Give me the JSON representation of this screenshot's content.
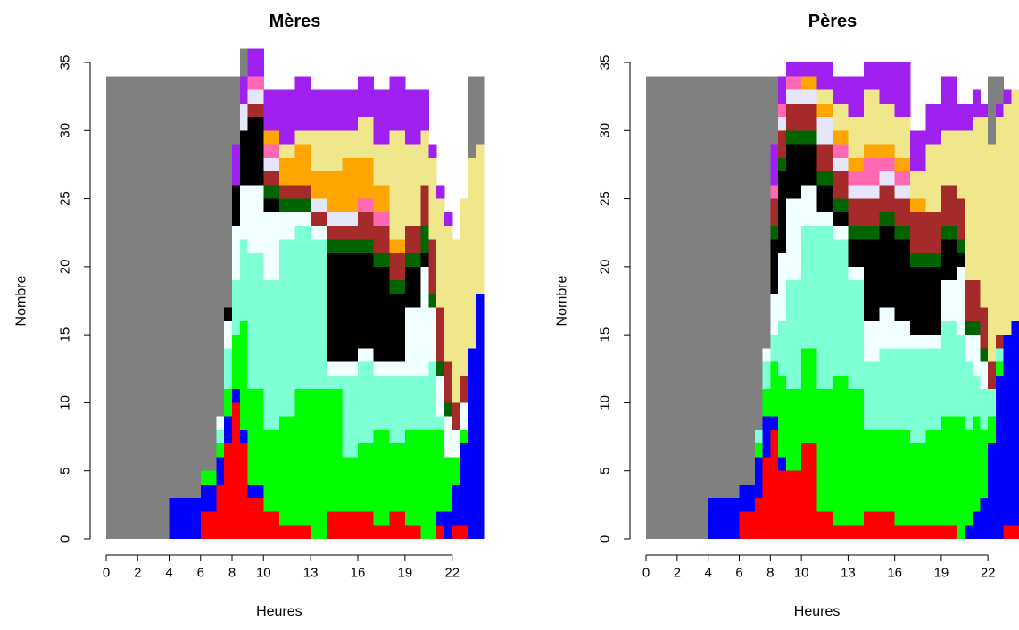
{
  "chart_data": [
    {
      "type": "area",
      "stacked": true,
      "step": true,
      "title": "Mères",
      "xlabel": "Heures",
      "ylabel": "Nombre",
      "xlim": [
        0,
        24
      ],
      "ylim": [
        0,
        35
      ],
      "x_ticks": [
        0,
        2,
        4,
        6,
        8,
        10,
        13,
        16,
        19,
        22
      ],
      "y_ticks": [
        0,
        5,
        10,
        15,
        20,
        25,
        30,
        35
      ],
      "x": [
        0,
        1,
        2,
        3,
        4,
        5,
        6,
        7,
        7.5,
        8,
        8.5,
        9,
        10,
        11,
        12,
        13,
        14,
        15,
        16,
        17,
        18,
        19,
        20,
        20.5,
        21,
        21.5,
        22,
        22.5,
        23,
        23.5
      ],
      "series": [
        {
          "values": [
            0,
            0,
            0,
            0,
            0,
            0,
            2,
            4,
            7,
            10,
            7,
            3,
            2,
            1,
            1,
            0,
            2,
            2,
            2,
            1,
            2,
            1,
            0,
            0,
            1,
            0,
            1,
            1,
            0,
            0
          ],
          "color": "#ff0000"
        },
        {
          "values": [
            0,
            0,
            0,
            0,
            3,
            3,
            2,
            2,
            2,
            1,
            1,
            1,
            0,
            0,
            0,
            0,
            0,
            0,
            0,
            0,
            0,
            0,
            0,
            0,
            1,
            2,
            3,
            6,
            14,
            18
          ],
          "color": "#0000ff"
        },
        {
          "values": [
            0,
            0,
            0,
            0,
            0,
            0,
            1,
            1,
            2,
            4,
            8,
            7,
            6,
            8,
            10,
            11,
            9,
            4,
            5,
            7,
            5,
            7,
            8,
            8,
            6,
            4,
            2,
            1,
            0,
            0
          ],
          "color": "#00ff00"
        },
        {
          "values": [
            0,
            0,
            0,
            0,
            0,
            0,
            0,
            1,
            3,
            4,
            6,
            10,
            11,
            13,
            12,
            11,
            1,
            6,
            6,
            4,
            5,
            4,
            4,
            5,
            1,
            0,
            0,
            0,
            0,
            0
          ],
          "color": "#7fffd4"
        },
        {
          "values": [
            0,
            0,
            0,
            0,
            0,
            0,
            0,
            1,
            2,
            4,
            4,
            5,
            5,
            2,
            1,
            1,
            1,
            1,
            1,
            1,
            1,
            5,
            8,
            4,
            3,
            3,
            2,
            2,
            0,
            0
          ],
          "color": "#f0ffff"
        },
        {
          "values": [
            0,
            0,
            0,
            0,
            0,
            0,
            0,
            0,
            1,
            3,
            4,
            5,
            1,
            0,
            0,
            0,
            8,
            8,
            7,
            7,
            5,
            3,
            1,
            0,
            0,
            0,
            0,
            0,
            0,
            0
          ],
          "color": "#000000"
        },
        {
          "values": [
            0,
            0,
            0,
            0,
            0,
            0,
            0,
            0,
            0,
            0,
            0,
            0,
            1,
            1,
            1,
            0,
            1,
            1,
            1,
            1,
            1,
            1,
            2,
            1,
            1,
            1,
            0,
            0,
            0,
            0
          ],
          "color": "#006400"
        },
        {
          "values": [
            0,
            0,
            0,
            0,
            0,
            0,
            0,
            0,
            0,
            0,
            0,
            1,
            1,
            1,
            1,
            1,
            1,
            1,
            2,
            2,
            2,
            2,
            3,
            4,
            4,
            3,
            2,
            2,
            0,
            0
          ],
          "color": "#a52a2a"
        },
        {
          "values": [
            0,
            0,
            0,
            0,
            0,
            0,
            0,
            0,
            0,
            0,
            2,
            1,
            1,
            0,
            0,
            1,
            1,
            1,
            0,
            0,
            0,
            0,
            0,
            0,
            0,
            0,
            0,
            0,
            0,
            0
          ],
          "color": "#e6e6fa"
        },
        {
          "values": [
            0,
            0,
            0,
            0,
            0,
            0,
            0,
            0,
            0,
            0,
            0,
            1,
            1,
            0,
            0,
            0,
            0,
            0,
            1,
            1,
            0,
            0,
            0,
            0,
            0,
            0,
            0,
            0,
            0,
            0
          ],
          "color": "#ff69b4"
        },
        {
          "values": [
            0,
            0,
            0,
            0,
            0,
            0,
            0,
            0,
            0,
            0,
            0,
            0,
            1,
            2,
            3,
            2,
            3,
            4,
            3,
            2,
            1,
            0,
            0,
            0,
            0,
            0,
            0,
            0,
            0,
            0
          ],
          "color": "#ffa500"
        },
        {
          "values": [
            0,
            0,
            0,
            0,
            0,
            0,
            0,
            0,
            0,
            0,
            0,
            0,
            0,
            1,
            1,
            3,
            3,
            2,
            3,
            3,
            8,
            6,
            4,
            6,
            8,
            10,
            12,
            13,
            14,
            11
          ],
          "color": "#f0e68c"
        },
        {
          "values": [
            0,
            0,
            0,
            0,
            0,
            0,
            0,
            0,
            0,
            3,
            2,
            2,
            3,
            4,
            4,
            3,
            3,
            3,
            3,
            4,
            4,
            4,
            3,
            1,
            1,
            1,
            0,
            0,
            0,
            0
          ],
          "color": "#a020f0"
        },
        {
          "values": [
            34,
            34,
            34,
            34,
            31,
            31,
            29,
            25,
            17,
            5,
            2,
            0,
            0,
            0,
            0,
            0,
            0,
            0,
            0,
            0,
            0,
            0,
            0,
            0,
            0,
            0,
            0,
            0,
            6,
            5
          ],
          "color": "#808080"
        }
      ]
    },
    {
      "type": "area",
      "stacked": true,
      "step": true,
      "title": "Pères",
      "xlabel": "Heures",
      "ylabel": "Nombre",
      "xlim": [
        0,
        24
      ],
      "ylim": [
        0,
        35
      ],
      "x_ticks": [
        0,
        2,
        4,
        6,
        8,
        10,
        13,
        16,
        19,
        22
      ],
      "y_ticks": [
        0,
        5,
        10,
        15,
        20,
        25,
        30,
        35
      ],
      "x": [
        0,
        1,
        2,
        3,
        4,
        5,
        6,
        7,
        7.5,
        8,
        8.5,
        9,
        10,
        11,
        12,
        13,
        14,
        15,
        16,
        17,
        18,
        19,
        20,
        20.5,
        21,
        21.5,
        22,
        22.5,
        23,
        23.5
      ],
      "series": [
        {
          "values": [
            0,
            0,
            0,
            0,
            0,
            0,
            2,
            3,
            6,
            8,
            5,
            5,
            7,
            2,
            1,
            1,
            2,
            2,
            1,
            1,
            1,
            1,
            0,
            0,
            0,
            0,
            0,
            0,
            1,
            1
          ],
          "color": "#ff0000"
        },
        {
          "values": [
            0,
            0,
            0,
            0,
            3,
            3,
            2,
            3,
            3,
            1,
            1,
            0,
            0,
            0,
            0,
            0,
            0,
            0,
            0,
            0,
            0,
            0,
            0,
            1,
            2,
            3,
            7,
            12,
            14,
            15
          ],
          "color": "#0000ff"
        },
        {
          "values": [
            0,
            0,
            0,
            0,
            0,
            0,
            0,
            1,
            2,
            4,
            6,
            6,
            7,
            9,
            11,
            10,
            6,
            6,
            7,
            6,
            7,
            8,
            9,
            7,
            7,
            5,
            2,
            1,
            0,
            0
          ],
          "color": "#00ff00"
        },
        {
          "values": [
            0,
            0,
            0,
            0,
            0,
            0,
            0,
            1,
            2,
            2,
            4,
            8,
            9,
            12,
            10,
            8,
            5,
            6,
            6,
            7,
            6,
            7,
            6,
            5,
            3,
            3,
            2,
            1,
            0,
            0
          ],
          "color": "#7fffd4"
        },
        {
          "values": [
            0,
            0,
            0,
            0,
            0,
            0,
            0,
            0,
            1,
            3,
            5,
            6,
            3,
            1,
            1,
            1,
            3,
            3,
            2,
            1,
            1,
            3,
            5,
            2,
            3,
            2,
            0,
            0,
            0,
            0
          ],
          "color": "#f0ffff"
        },
        {
          "values": [
            0,
            0,
            0,
            0,
            0,
            0,
            0,
            0,
            0,
            4,
            6,
            4,
            3,
            2,
            1,
            2,
            6,
            6,
            6,
            5,
            5,
            3,
            1,
            0,
            0,
            0,
            0,
            0,
            0,
            0
          ],
          "color": "#000000"
        },
        {
          "values": [
            0,
            0,
            0,
            0,
            0,
            0,
            0,
            0,
            0,
            1,
            1,
            1,
            1,
            1,
            1,
            1,
            1,
            1,
            1,
            1,
            1,
            1,
            1,
            1,
            1,
            1,
            0,
            0,
            0,
            0
          ],
          "color": "#006400"
        },
        {
          "values": [
            0,
            0,
            0,
            0,
            0,
            0,
            0,
            0,
            0,
            2,
            2,
            2,
            2,
            2,
            2,
            2,
            2,
            2,
            2,
            3,
            3,
            3,
            3,
            3,
            3,
            3,
            2,
            1,
            0,
            0
          ],
          "color": "#a52a2a"
        },
        {
          "values": [
            0,
            0,
            0,
            0,
            0,
            0,
            0,
            0,
            0,
            0,
            1,
            1,
            1,
            2,
            1,
            1,
            1,
            1,
            1,
            0,
            0,
            0,
            0,
            0,
            0,
            0,
            0,
            0,
            0,
            0
          ],
          "color": "#e6e6fa"
        },
        {
          "values": [
            0,
            0,
            0,
            0,
            0,
            0,
            0,
            0,
            0,
            1,
            1,
            1,
            0,
            0,
            1,
            1,
            2,
            1,
            1,
            0,
            0,
            0,
            0,
            0,
            0,
            0,
            0,
            0,
            0,
            0
          ],
          "color": "#ff69b4"
        },
        {
          "values": [
            0,
            0,
            0,
            0,
            0,
            0,
            0,
            0,
            0,
            0,
            0,
            0,
            1,
            1,
            1,
            1,
            1,
            1,
            1,
            1,
            0,
            0,
            0,
            0,
            0,
            0,
            0,
            0,
            0,
            0
          ],
          "color": "#ffa500"
        },
        {
          "values": [
            0,
            0,
            0,
            0,
            0,
            0,
            0,
            0,
            0,
            0,
            0,
            0,
            0,
            1,
            2,
            3,
            4,
            3,
            3,
            2,
            5,
            4,
            5,
            11,
            12,
            14,
            16,
            16,
            17,
            17
          ],
          "color": "#f0e68c"
        },
        {
          "values": [
            0,
            0,
            0,
            0,
            0,
            0,
            0,
            0,
            0,
            3,
            2,
            1,
            1,
            2,
            2,
            3,
            2,
            3,
            4,
            3,
            3,
            4,
            2,
            2,
            2,
            1,
            0,
            1,
            1,
            0
          ],
          "color": "#a020f0"
        },
        {
          "values": [
            34,
            34,
            34,
            34,
            31,
            31,
            30,
            26,
            20,
            5,
            0,
            0,
            0,
            0,
            0,
            0,
            0,
            0,
            0,
            0,
            0,
            0,
            0,
            0,
            0,
            0,
            5,
            2,
            0,
            0
          ],
          "color": "#808080"
        }
      ]
    }
  ]
}
